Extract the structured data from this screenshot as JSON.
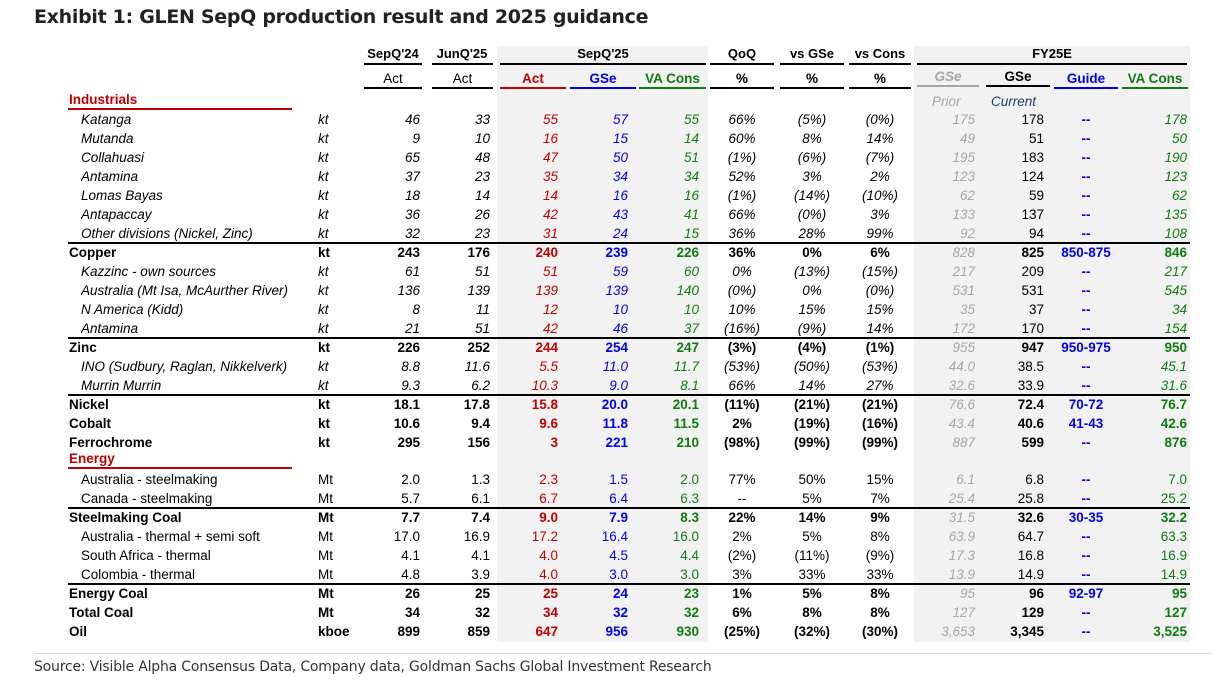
{
  "title": "Exhibit 1: GLEN SepQ production result and 2025 guidance",
  "header": {
    "groups": {
      "sepq24": "SepQ'24",
      "junq25": "JunQ'25",
      "sepq25": "SepQ'25",
      "qoq": "QoQ",
      "vs_gse": "vs GSe",
      "vs_cons": "vs Cons",
      "fy25e": "FY25E"
    },
    "sub": {
      "sepq24": "Act",
      "junq25": "Act",
      "sepq25_act": "Act",
      "sepq25_gse": "GSe",
      "sepq25_cons": "VA Cons",
      "qoq": "%",
      "vs_gse": "%",
      "vs_cons": "%",
      "fy_gse_prior": "GSe",
      "fy_gse_current": "GSe",
      "fy_guide": "Guide",
      "fy_cons": "VA Cons"
    },
    "sub2": {
      "prior": "Prior",
      "current": "Current"
    }
  },
  "sections": {
    "industrials": "Industrials",
    "energy": "Energy"
  },
  "colors": {
    "actual": "#c00000",
    "gse": "#0000ee",
    "consensus": "#107c10",
    "prior": "#a6a6a6",
    "section": "#c00000",
    "shade": "#f2f2f2"
  },
  "rows": [
    {
      "label": "Katanga",
      "unit": "kt",
      "style": "italic",
      "v": [
        "46",
        "33",
        "55",
        "57",
        "55",
        "66%",
        "(5%)",
        "(0%)",
        "175",
        "178",
        "--",
        "178"
      ]
    },
    {
      "label": "Mutanda",
      "unit": "kt",
      "style": "italic",
      "v": [
        "9",
        "10",
        "16",
        "15",
        "14",
        "60%",
        "8%",
        "14%",
        "49",
        "51",
        "--",
        "50"
      ]
    },
    {
      "label": "Collahuasi",
      "unit": "kt",
      "style": "italic",
      "v": [
        "65",
        "48",
        "47",
        "50",
        "51",
        "(1%)",
        "(6%)",
        "(7%)",
        "195",
        "183",
        "--",
        "190"
      ]
    },
    {
      "label": "Antamina",
      "unit": "kt",
      "style": "italic",
      "v": [
        "37",
        "23",
        "35",
        "34",
        "34",
        "52%",
        "3%",
        "2%",
        "123",
        "124",
        "--",
        "123"
      ]
    },
    {
      "label": "Lomas Bayas",
      "unit": "kt",
      "style": "italic",
      "v": [
        "18",
        "14",
        "14",
        "16",
        "16",
        "(1%)",
        "(14%)",
        "(10%)",
        "62",
        "59",
        "--",
        "62"
      ]
    },
    {
      "label": "Antapaccay",
      "unit": "kt",
      "style": "italic",
      "v": [
        "36",
        "26",
        "42",
        "43",
        "41",
        "66%",
        "(0%)",
        "3%",
        "133",
        "137",
        "--",
        "135"
      ]
    },
    {
      "label": "Other divisions (Nickel, Zinc)",
      "unit": "kt",
      "style": "italic",
      "v": [
        "32",
        "23",
        "31",
        "24",
        "15",
        "36%",
        "28%",
        "99%",
        "92",
        "94",
        "--",
        "108"
      ]
    },
    {
      "label": "Copper",
      "unit": "kt",
      "style": "bold",
      "v": [
        "243",
        "176",
        "240",
        "239",
        "226",
        "36%",
        "0%",
        "6%",
        "828",
        "825",
        "850-875",
        "846"
      ]
    },
    {
      "label": "Kazzinc - own sources",
      "unit": "kt",
      "style": "italic",
      "v": [
        "61",
        "51",
        "51",
        "59",
        "60",
        "0%",
        "(13%)",
        "(15%)",
        "217",
        "209",
        "--",
        "217"
      ]
    },
    {
      "label": "Australia (Mt Isa, McAurther River)",
      "unit": "kt",
      "style": "italic",
      "v": [
        "136",
        "139",
        "139",
        "139",
        "140",
        "(0%)",
        "0%",
        "(0%)",
        "531",
        "531",
        "--",
        "545"
      ]
    },
    {
      "label": "N America (Kidd)",
      "unit": "kt",
      "style": "italic",
      "v": [
        "8",
        "11",
        "12",
        "10",
        "10",
        "10%",
        "15%",
        "15%",
        "35",
        "37",
        "--",
        "34"
      ]
    },
    {
      "label": "Antamina",
      "unit": "kt",
      "style": "italic",
      "v": [
        "21",
        "51",
        "42",
        "46",
        "37",
        "(16%)",
        "(9%)",
        "14%",
        "172",
        "170",
        "--",
        "154"
      ]
    },
    {
      "label": "Zinc",
      "unit": "kt",
      "style": "bold",
      "v": [
        "226",
        "252",
        "244",
        "254",
        "247",
        "(3%)",
        "(4%)",
        "(1%)",
        "955",
        "947",
        "950-975",
        "950"
      ]
    },
    {
      "label": "INO (Sudbury, Raglan, Nikkelverk)",
      "unit": "kt",
      "style": "italic",
      "v": [
        "8.8",
        "11.6",
        "5.5",
        "11.0",
        "11.7",
        "(53%)",
        "(50%)",
        "(53%)",
        "44.0",
        "38.5",
        "--",
        "45.1"
      ]
    },
    {
      "label": "Murrin Murrin",
      "unit": "kt",
      "style": "italic",
      "v": [
        "9.3",
        "6.2",
        "10.3",
        "9.0",
        "8.1",
        "66%",
        "14%",
        "27%",
        "32.6",
        "33.9",
        "--",
        "31.6"
      ]
    },
    {
      "label": "Nickel",
      "unit": "kt",
      "style": "bold",
      "v": [
        "18.1",
        "17.8",
        "15.8",
        "20.0",
        "20.1",
        "(11%)",
        "(21%)",
        "(21%)",
        "76.6",
        "72.4",
        "70-72",
        "76.7"
      ]
    },
    {
      "label": "Cobalt",
      "unit": "kt",
      "style": "bold",
      "v": [
        "10.6",
        "9.4",
        "9.6",
        "11.8",
        "11.5",
        "2%",
        "(19%)",
        "(16%)",
        "43.4",
        "40.6",
        "41-43",
        "42.6"
      ]
    },
    {
      "label": "Ferrochrome",
      "unit": "kt",
      "style": "bold",
      "v": [
        "295",
        "156",
        "3",
        "221",
        "210",
        "(98%)",
        "(99%)",
        "(99%)",
        "887",
        "599",
        "--",
        "876"
      ]
    },
    {
      "label": "Australia - steelmaking",
      "unit": "Mt",
      "style": "plain",
      "v": [
        "2.0",
        "1.3",
        "2.3",
        "1.5",
        "2.0",
        "77%",
        "50%",
        "15%",
        "6.1",
        "6.8",
        "--",
        "7.0"
      ]
    },
    {
      "label": "Canada - steelmaking",
      "unit": "Mt",
      "style": "plain",
      "v": [
        "5.7",
        "6.1",
        "6.7",
        "6.4",
        "6.3",
        "--",
        "5%",
        "7%",
        "25.4",
        "25.8",
        "--",
        "25.2"
      ]
    },
    {
      "label": "Steelmaking Coal",
      "unit": "Mt",
      "style": "bold",
      "v": [
        "7.7",
        "7.4",
        "9.0",
        "7.9",
        "8.3",
        "22%",
        "14%",
        "9%",
        "31.5",
        "32.6",
        "30-35",
        "32.2"
      ]
    },
    {
      "label": "Australia - thermal + semi soft",
      "unit": "Mt",
      "style": "plain",
      "v": [
        "17.0",
        "16.9",
        "17.2",
        "16.4",
        "16.0",
        "2%",
        "5%",
        "8%",
        "63.9",
        "64.7",
        "--",
        "63.3"
      ]
    },
    {
      "label": "South Africa - thermal",
      "unit": "Mt",
      "style": "plain",
      "v": [
        "4.1",
        "4.1",
        "4.0",
        "4.5",
        "4.4",
        "(2%)",
        "(11%)",
        "(9%)",
        "17.3",
        "16.8",
        "--",
        "16.9"
      ]
    },
    {
      "label": "Colombia - thermal",
      "unit": "Mt",
      "style": "plain",
      "v": [
        "4.8",
        "3.9",
        "4.0",
        "3.0",
        "3.0",
        "3%",
        "33%",
        "33%",
        "13.9",
        "14.9",
        "--",
        "14.9"
      ]
    },
    {
      "label": "Energy Coal",
      "unit": "Mt",
      "style": "bold",
      "v": [
        "26",
        "25",
        "25",
        "24",
        "23",
        "1%",
        "5%",
        "8%",
        "95",
        "96",
        "92-97",
        "95"
      ]
    },
    {
      "label": "Total Coal",
      "unit": "Mt",
      "style": "bold",
      "v": [
        "34",
        "32",
        "34",
        "32",
        "32",
        "6%",
        "8%",
        "8%",
        "127",
        "129",
        "--",
        "127"
      ]
    },
    {
      "label": "Oil",
      "unit": "kboe",
      "style": "bold",
      "v": [
        "899",
        "859",
        "647",
        "956",
        "930",
        "(25%)",
        "(32%)",
        "(30%)",
        "3,653",
        "3,345",
        "--",
        "3,525"
      ]
    }
  ],
  "source": "Source: Visible Alpha Consensus Data, Company data, Goldman Sachs Global Investment Research"
}
